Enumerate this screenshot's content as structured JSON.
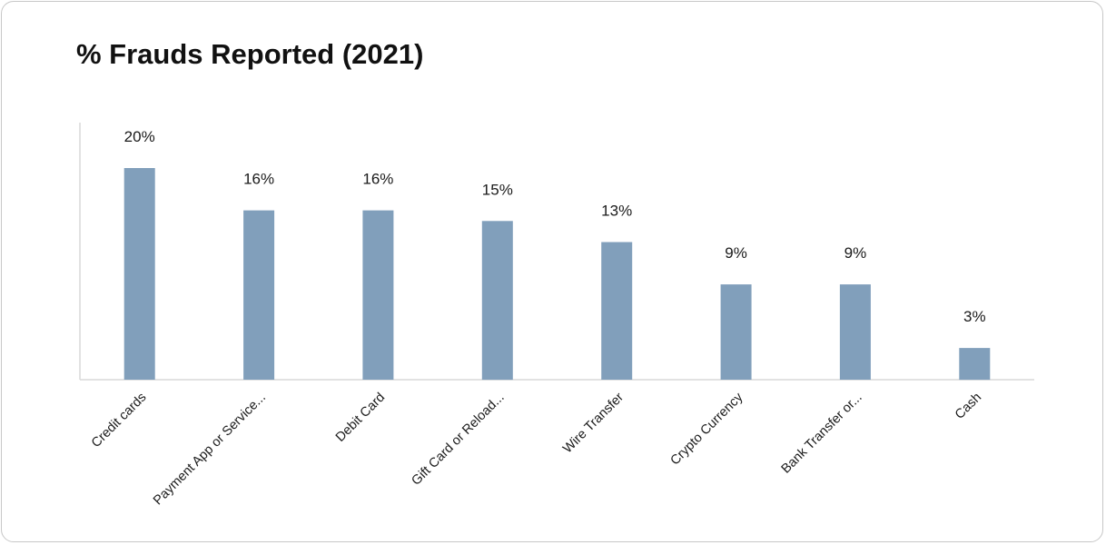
{
  "chart_data": {
    "type": "bar",
    "title": "% Frauds Reported (2021)",
    "categories": [
      "Credit cards",
      "Payment App or Service...",
      "Debit Card",
      "Gift Card or Reload...",
      "Wire Transfer",
      "Crypto Currency",
      "Bank Transfer or...",
      "Cash"
    ],
    "values": [
      20,
      16,
      16,
      15,
      13,
      9,
      9,
      3
    ],
    "data_labels": [
      "20%",
      "16%",
      "16%",
      "15%",
      "13%",
      "9%",
      "9%",
      "3%"
    ],
    "xlabel": "",
    "ylabel": "",
    "ylim": [
      0,
      24
    ],
    "grid": false,
    "bar_color": "#819fbb"
  }
}
